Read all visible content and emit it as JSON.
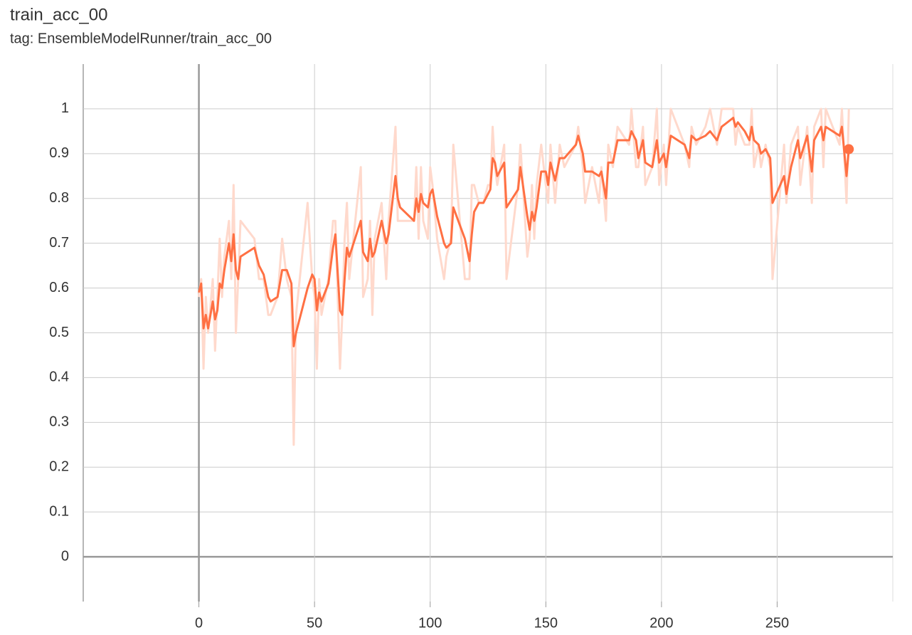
{
  "chart_data": {
    "type": "line",
    "title": "train_acc_00",
    "subtitle": "tag: EnsembleModelRunner/train_acc_00",
    "x": [
      0,
      1,
      2,
      3,
      4,
      6,
      7,
      8,
      9,
      10,
      11,
      13,
      14,
      15,
      16,
      17,
      18,
      24,
      26,
      28,
      30,
      31,
      34,
      36,
      38,
      40,
      41,
      42,
      47,
      49,
      50,
      51,
      52,
      53,
      56,
      58,
      59,
      61,
      62,
      63,
      64,
      65,
      70,
      71,
      73,
      74,
      75,
      76,
      79,
      81,
      82,
      85,
      86,
      87,
      93,
      94,
      95,
      96,
      97,
      99,
      100,
      101,
      103,
      106,
      107,
      109,
      110,
      115,
      117,
      118,
      119,
      121,
      123,
      125,
      126,
      127,
      128,
      129,
      132,
      133,
      138,
      139,
      142,
      143,
      144,
      145,
      146,
      148,
      150,
      151,
      152,
      154,
      156,
      158,
      163,
      164,
      166,
      167,
      170,
      173,
      174,
      176,
      177,
      179,
      181,
      186,
      187,
      189,
      190,
      192,
      193,
      196,
      198,
      199,
      201,
      202,
      204,
      210,
      212,
      213,
      215,
      219,
      221,
      224,
      226,
      231,
      232,
      233,
      236,
      238,
      239,
      240,
      242,
      243,
      245,
      247,
      248,
      253,
      254,
      256,
      259,
      260,
      263,
      265,
      266,
      269,
      270,
      271,
      277,
      278,
      280,
      281
    ],
    "series": [
      {
        "color": "#ffd9cc",
        "values": [
          0.58,
          0.62,
          0.42,
          0.58,
          0.5,
          0.62,
          0.46,
          0.58,
          0.71,
          0.58,
          0.67,
          0.75,
          0.62,
          0.83,
          0.5,
          0.62,
          0.75,
          0.71,
          0.62,
          0.62,
          0.54,
          0.54,
          0.58,
          0.71,
          0.62,
          0.58,
          0.25,
          0.54,
          0.79,
          0.62,
          0.58,
          0.42,
          0.62,
          0.54,
          0.62,
          0.75,
          0.75,
          0.42,
          0.54,
          0.71,
          0.79,
          0.62,
          0.87,
          0.58,
          0.62,
          0.75,
          0.54,
          0.71,
          0.79,
          0.62,
          0.75,
          0.96,
          0.75,
          0.75,
          0.75,
          0.87,
          0.71,
          0.87,
          0.75,
          0.71,
          0.87,
          0.83,
          0.71,
          0.62,
          0.67,
          0.71,
          0.92,
          0.62,
          0.62,
          0.83,
          0.83,
          0.79,
          0.79,
          0.83,
          0.83,
          0.96,
          0.87,
          0.83,
          0.92,
          0.62,
          0.83,
          0.92,
          0.67,
          0.71,
          0.83,
          0.71,
          0.83,
          0.92,
          0.83,
          0.79,
          0.92,
          0.79,
          0.92,
          0.87,
          0.92,
          0.96,
          0.87,
          0.79,
          0.87,
          0.79,
          0.87,
          0.75,
          0.92,
          0.87,
          0.96,
          0.92,
          1,
          0.87,
          0.87,
          0.96,
          0.83,
          0.87,
          1,
          0.83,
          0.92,
          0.83,
          1,
          0.92,
          0.87,
          0.96,
          0.92,
          0.96,
          1,
          0.92,
          1,
          1,
          0.92,
          0.96,
          0.92,
          0.92,
          1,
          0.87,
          0.92,
          0.87,
          0.92,
          0.87,
          0.62,
          0.92,
          0.79,
          0.92,
          0.96,
          0.83,
          0.96,
          0.79,
          0.96,
          1,
          0.87,
          1,
          0.92,
          1,
          0.79,
          1
        ]
      },
      {
        "color": "#ff7043",
        "values": [
          0.59,
          0.61,
          0.51,
          0.54,
          0.51,
          0.57,
          0.53,
          0.55,
          0.61,
          0.6,
          0.64,
          0.7,
          0.66,
          0.72,
          0.64,
          0.62,
          0.67,
          0.69,
          0.65,
          0.63,
          0.58,
          0.57,
          0.58,
          0.64,
          0.64,
          0.61,
          0.47,
          0.5,
          0.6,
          0.63,
          0.62,
          0.55,
          0.59,
          0.57,
          0.61,
          0.69,
          0.72,
          0.55,
          0.54,
          0.62,
          0.69,
          0.67,
          0.75,
          0.68,
          0.66,
          0.71,
          0.67,
          0.68,
          0.75,
          0.7,
          0.72,
          0.85,
          0.8,
          0.78,
          0.75,
          0.8,
          0.77,
          0.81,
          0.79,
          0.78,
          0.81,
          0.82,
          0.76,
          0.7,
          0.69,
          0.7,
          0.78,
          0.71,
          0.66,
          0.72,
          0.77,
          0.79,
          0.79,
          0.81,
          0.82,
          0.89,
          0.88,
          0.85,
          0.88,
          0.78,
          0.82,
          0.87,
          0.76,
          0.73,
          0.77,
          0.75,
          0.78,
          0.86,
          0.86,
          0.83,
          0.88,
          0.84,
          0.89,
          0.89,
          0.92,
          0.94,
          0.9,
          0.86,
          0.86,
          0.85,
          0.86,
          0.8,
          0.88,
          0.88,
          0.93,
          0.93,
          0.95,
          0.93,
          0.89,
          0.93,
          0.88,
          0.87,
          0.93,
          0.88,
          0.9,
          0.87,
          0.94,
          0.92,
          0.89,
          0.94,
          0.93,
          0.94,
          0.95,
          0.93,
          0.96,
          0.98,
          0.96,
          0.97,
          0.95,
          0.93,
          0.96,
          0.93,
          0.92,
          0.9,
          0.91,
          0.89,
          0.79,
          0.85,
          0.81,
          0.87,
          0.93,
          0.89,
          0.94,
          0.86,
          0.93,
          0.96,
          0.93,
          0.96,
          0.94,
          0.96,
          0.85,
          0.91
        ]
      }
    ],
    "xlim": [
      -50,
      300
    ],
    "xticks": [
      0,
      50,
      100,
      150,
      200,
      250
    ],
    "ylim": [
      -0.1,
      1.1
    ],
    "yticks": [
      0,
      0.1,
      0.2,
      0.3,
      0.4,
      0.5,
      0.6,
      0.7,
      0.8,
      0.9,
      1
    ],
    "grid": true
  }
}
